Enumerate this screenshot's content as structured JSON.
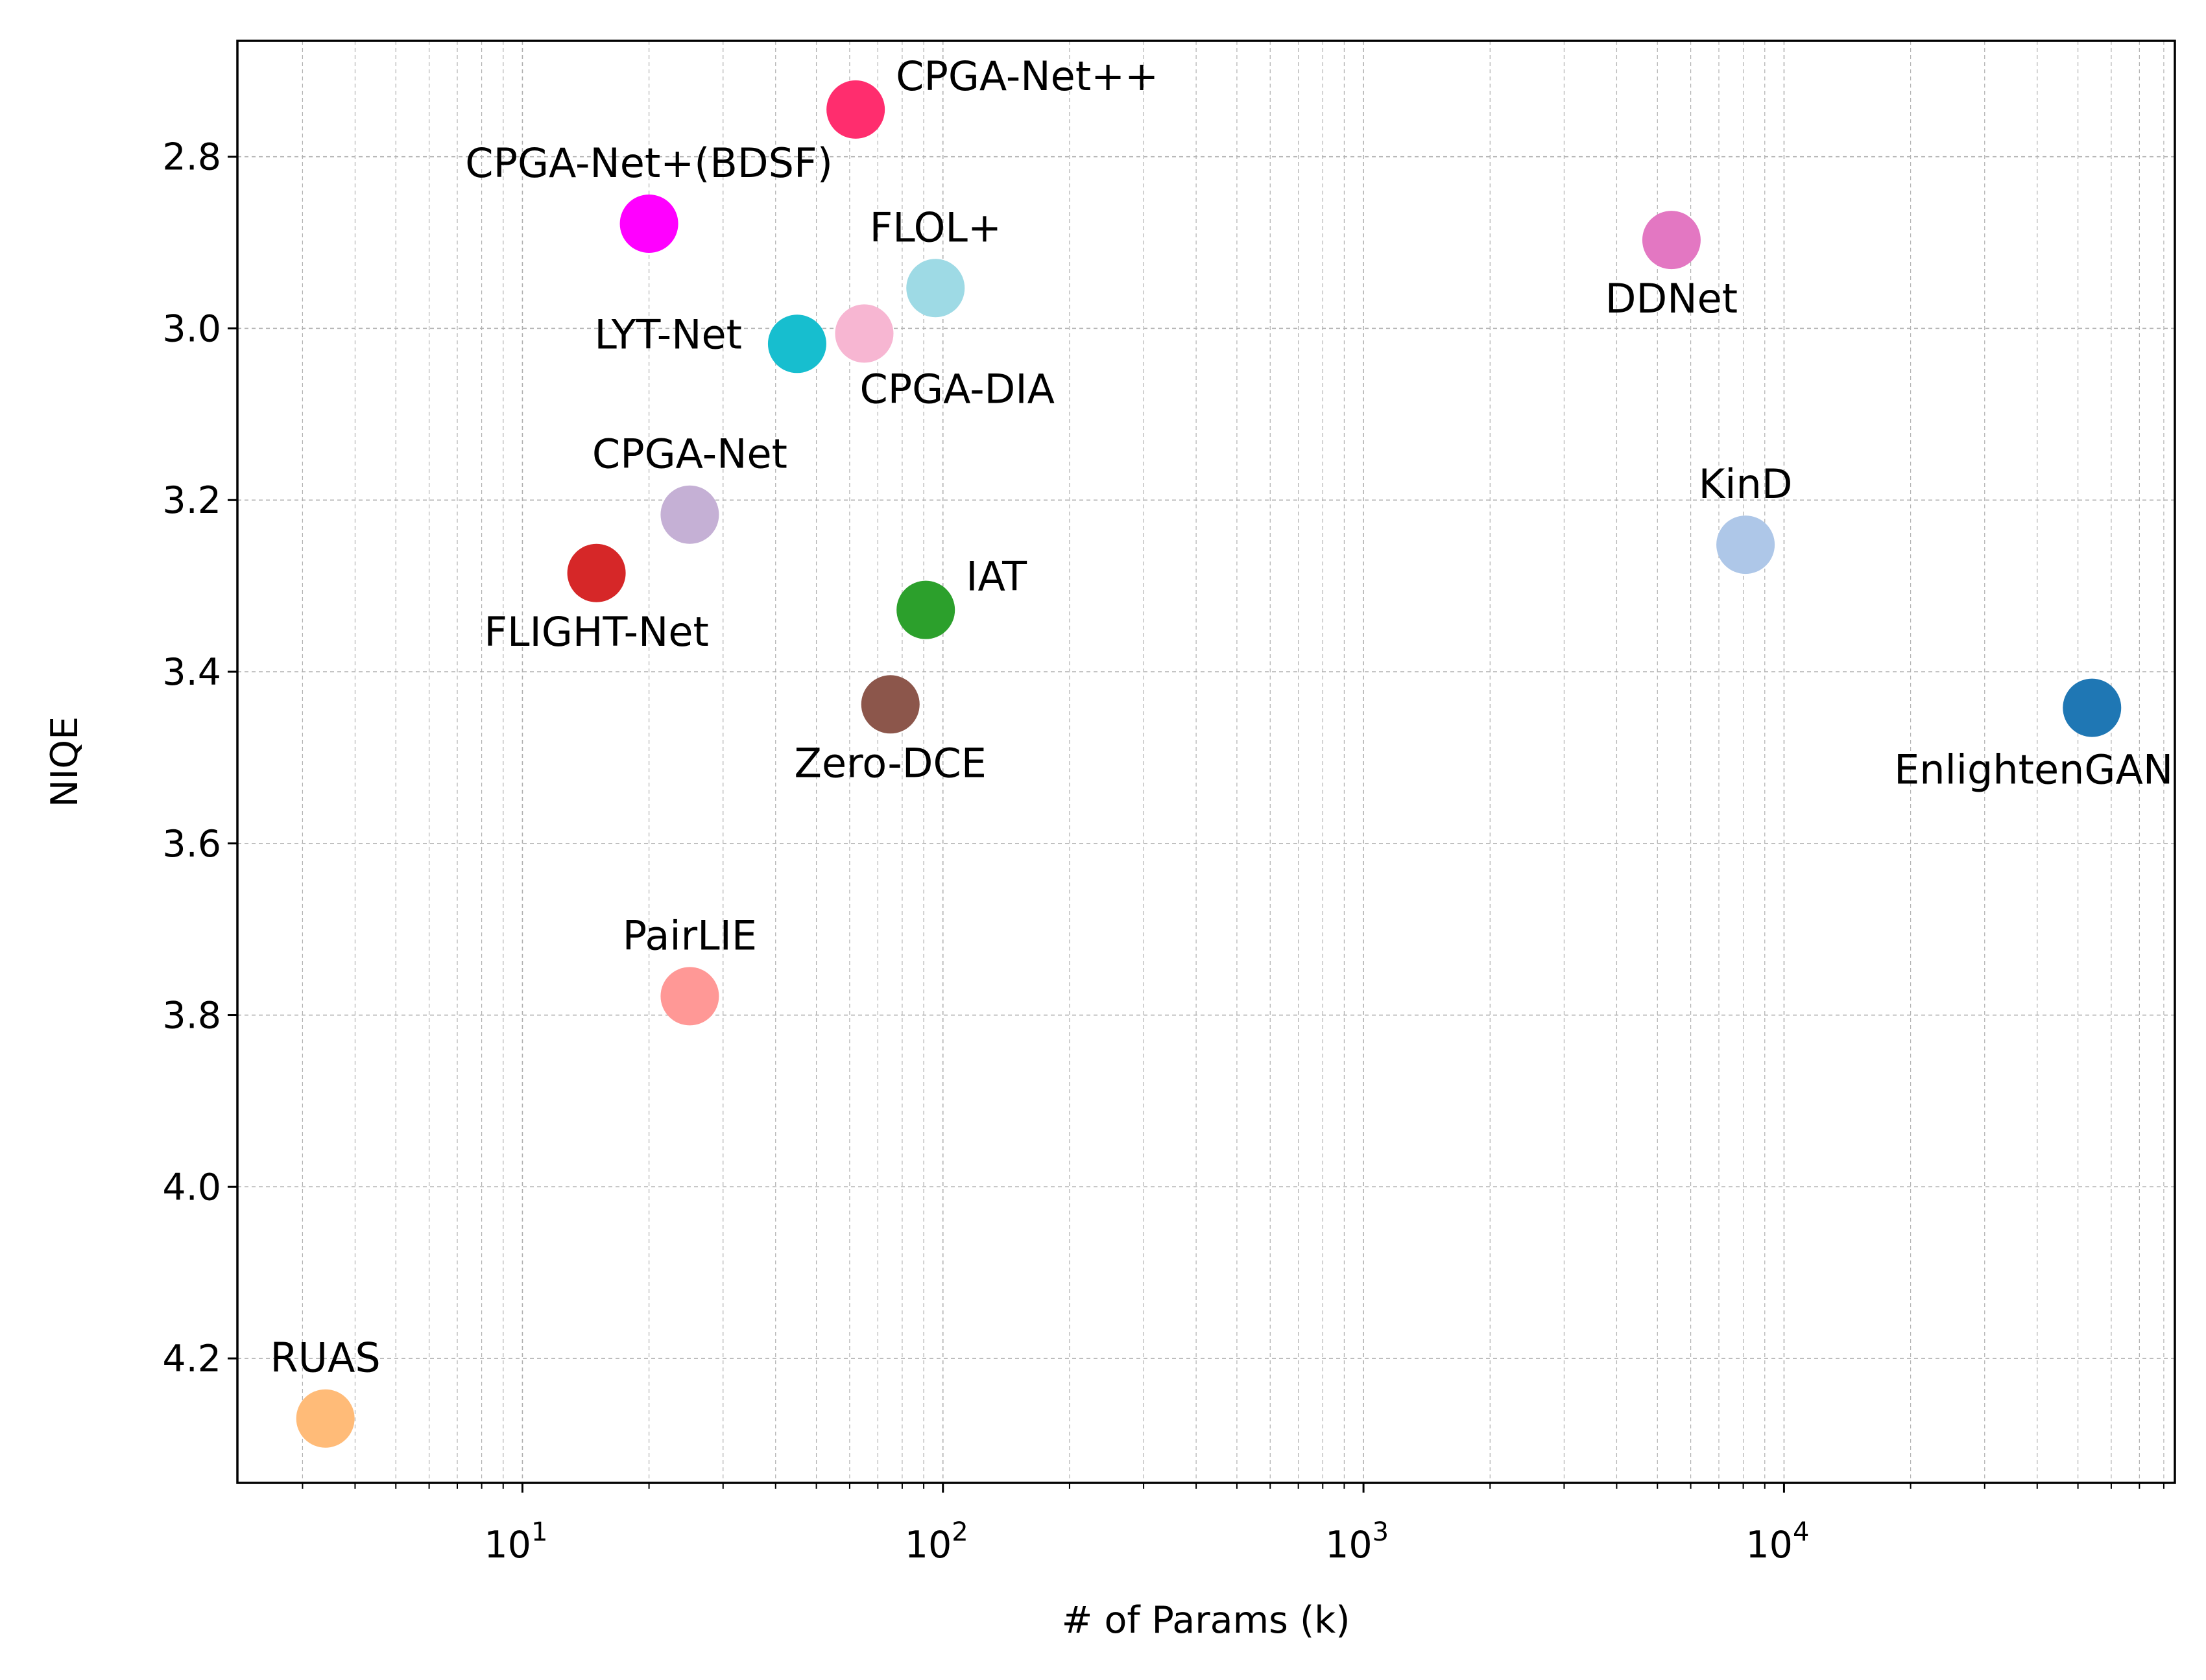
{
  "chart_data": {
    "type": "scatter",
    "title": "",
    "xlabel": "# of Params (k)",
    "ylabel": "NIQE",
    "x_scale": "log",
    "xlim": [
      2.1,
      85000
    ],
    "ylim": [
      4.345,
      2.665
    ],
    "y_inverted": true,
    "grid": true,
    "x_ticks": [
      {
        "value": 10,
        "base": "10",
        "exp": "1"
      },
      {
        "value": 100,
        "base": "10",
        "exp": "2"
      },
      {
        "value": 1000,
        "base": "10",
        "exp": "3"
      },
      {
        "value": 10000,
        "base": "10",
        "exp": "4"
      }
    ],
    "y_ticks": [
      {
        "value": 2.8,
        "label": "2.8"
      },
      {
        "value": 3.0,
        "label": "3.0"
      },
      {
        "value": 3.2,
        "label": "3.2"
      },
      {
        "value": 3.4,
        "label": "3.4"
      },
      {
        "value": 3.6,
        "label": "3.6"
      },
      {
        "value": 3.8,
        "label": "3.8"
      },
      {
        "value": 4.0,
        "label": "4.0"
      },
      {
        "value": 4.2,
        "label": "4.2"
      }
    ],
    "points": [
      {
        "name": "CPGA-Net++",
        "params_k": 62,
        "niqe": 2.745,
        "color": "#ff2d6e",
        "label_pos": "right"
      },
      {
        "name": "CPGA-Net+(BDSF)",
        "params_k": 20,
        "niqe": 2.878,
        "color": "#ff00ff",
        "label_pos": "above"
      },
      {
        "name": "DDNet",
        "params_k": 5400,
        "niqe": 2.897,
        "color": "#e377c2",
        "label_pos": "below"
      },
      {
        "name": "FLOL+",
        "params_k": 96,
        "niqe": 2.953,
        "color": "#9edae5",
        "label_pos": "above"
      },
      {
        "name": "CPGA-DIA",
        "params_k": 65,
        "niqe": 3.006,
        "color": "#f7b6d2",
        "label_pos": "below-right"
      },
      {
        "name": "LYT-Net",
        "params_k": 45,
        "niqe": 3.018,
        "color": "#17becf",
        "label_pos": "left"
      },
      {
        "name": "CPGA-Net",
        "params_k": 25,
        "niqe": 3.217,
        "color": "#c5b0d5",
        "label_pos": "above"
      },
      {
        "name": "KinD",
        "params_k": 8100,
        "niqe": 3.252,
        "color": "#aec7e8",
        "label_pos": "above"
      },
      {
        "name": "FLIGHT-Net",
        "params_k": 15,
        "niqe": 3.285,
        "color": "#d62728",
        "label_pos": "below"
      },
      {
        "name": "IAT",
        "params_k": 91,
        "niqe": 3.328,
        "color": "#2ca02c",
        "label_pos": "right"
      },
      {
        "name": "Zero-DCE",
        "params_k": 75,
        "niqe": 3.438,
        "color": "#8c564b",
        "label_pos": "below"
      },
      {
        "name": "EnlightenGAN",
        "params_k": 54000,
        "niqe": 3.442,
        "color": "#1f77b4",
        "label_pos": "below-left"
      },
      {
        "name": "PairLIE",
        "params_k": 25,
        "niqe": 3.778,
        "color": "#ff9896",
        "label_pos": "above"
      },
      {
        "name": "RUAS",
        "params_k": 3.4,
        "niqe": 4.27,
        "color": "#ffbb78",
        "label_pos": "above"
      }
    ]
  }
}
